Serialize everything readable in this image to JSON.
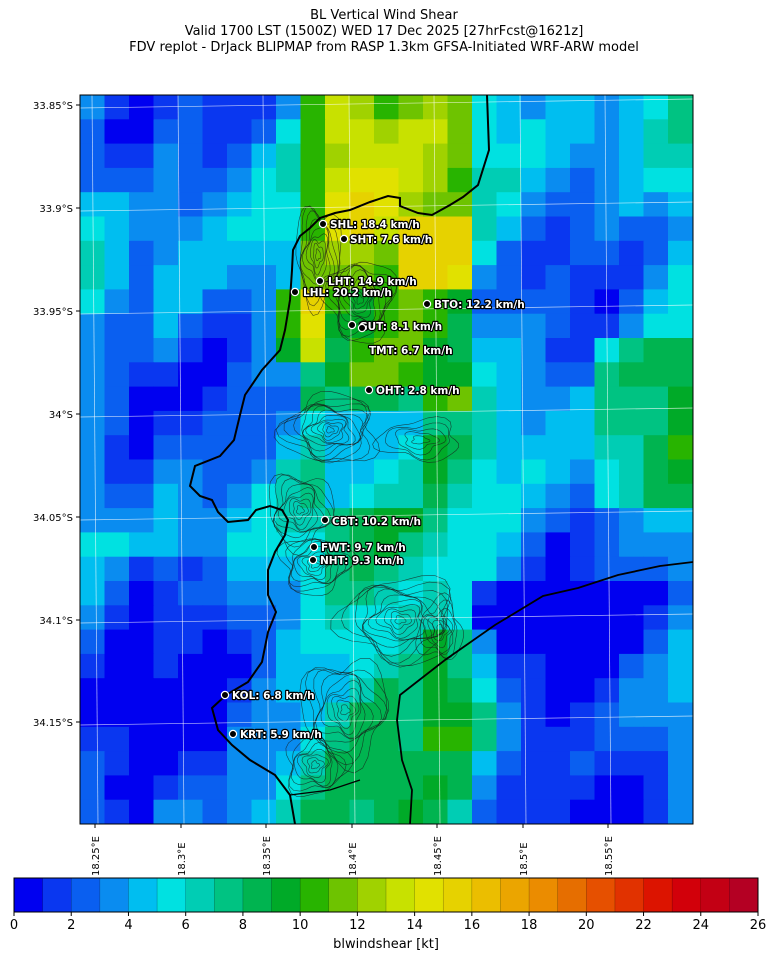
{
  "title": {
    "line1": "BL Vertical Wind Shear",
    "line2": "Valid 1700 LST (1500Z) WED 17 Dec 2025 [27hrFcst@1621z]",
    "line3": "FDV replot - DrJack BLIPMAP from RASP 1.3km GFSA-Initiated WRF-ARW model"
  },
  "map": {
    "lat_labels": [
      "33.85°S",
      "33.9°S",
      "33.95°S",
      "34°S",
      "34.05°S",
      "34.1°S",
      "34.15°S"
    ],
    "lon_labels": [
      "18.25°E",
      "18.3°E",
      "18.35°E",
      "18.4°E",
      "18.45°E",
      "18.5°E",
      "18.55°E"
    ],
    "stations": [
      {
        "code": "SHL",
        "label": "SHL: 18.4 km/h"
      },
      {
        "code": "SHT",
        "label": "SHT: 7.6 km/h"
      },
      {
        "code": "LHT",
        "label": "LHT: 14.9 km/h"
      },
      {
        "code": "LHL",
        "label": "LHL: 20.2 km/h"
      },
      {
        "code": "BTO",
        "label": "BTO: 12.2 km/h"
      },
      {
        "code": "GUT",
        "label": "GUT: 8.1 km/h"
      },
      {
        "code": "TMT",
        "label": "TMT: 6.7 km/h"
      },
      {
        "code": "OHT",
        "label": "OHT: 2.8 km/h"
      },
      {
        "code": "CBT",
        "label": "CBT: 10.2 km/h"
      },
      {
        "code": "FWT",
        "label": "FWT: 9.7 km/h"
      },
      {
        "code": "NHT",
        "label": "NHT: 9.3 km/h"
      },
      {
        "code": "KOL",
        "label": "KOL: 6.8 km/h"
      },
      {
        "code": "KRT",
        "label": "KRT: 5.9 km/h"
      }
    ]
  },
  "colorbar": {
    "label": "blwindshear [kt]",
    "ticks": [
      "0",
      "2",
      "4",
      "6",
      "8",
      "10",
      "12",
      "14",
      "16",
      "18",
      "20",
      "22",
      "24",
      "26"
    ],
    "colors": [
      "#0000f0",
      "#0a37f0",
      "#0a5ff0",
      "#0a8cf0",
      "#00bef0",
      "#00e1e1",
      "#00cdb4",
      "#00c382",
      "#00b450",
      "#00aa28",
      "#28b400",
      "#6ec300",
      "#a0d200",
      "#c8e100",
      "#e1e100",
      "#e6d200",
      "#ebbe00",
      "#eba500",
      "#eb8c00",
      "#e66e00",
      "#e65000",
      "#e13200",
      "#dc1400",
      "#d2000a",
      "#c30014",
      "#b40023"
    ]
  },
  "colors": {
    "coastline": "#000000",
    "gridline": "#ffffff",
    "land_outline": "#000000"
  }
}
